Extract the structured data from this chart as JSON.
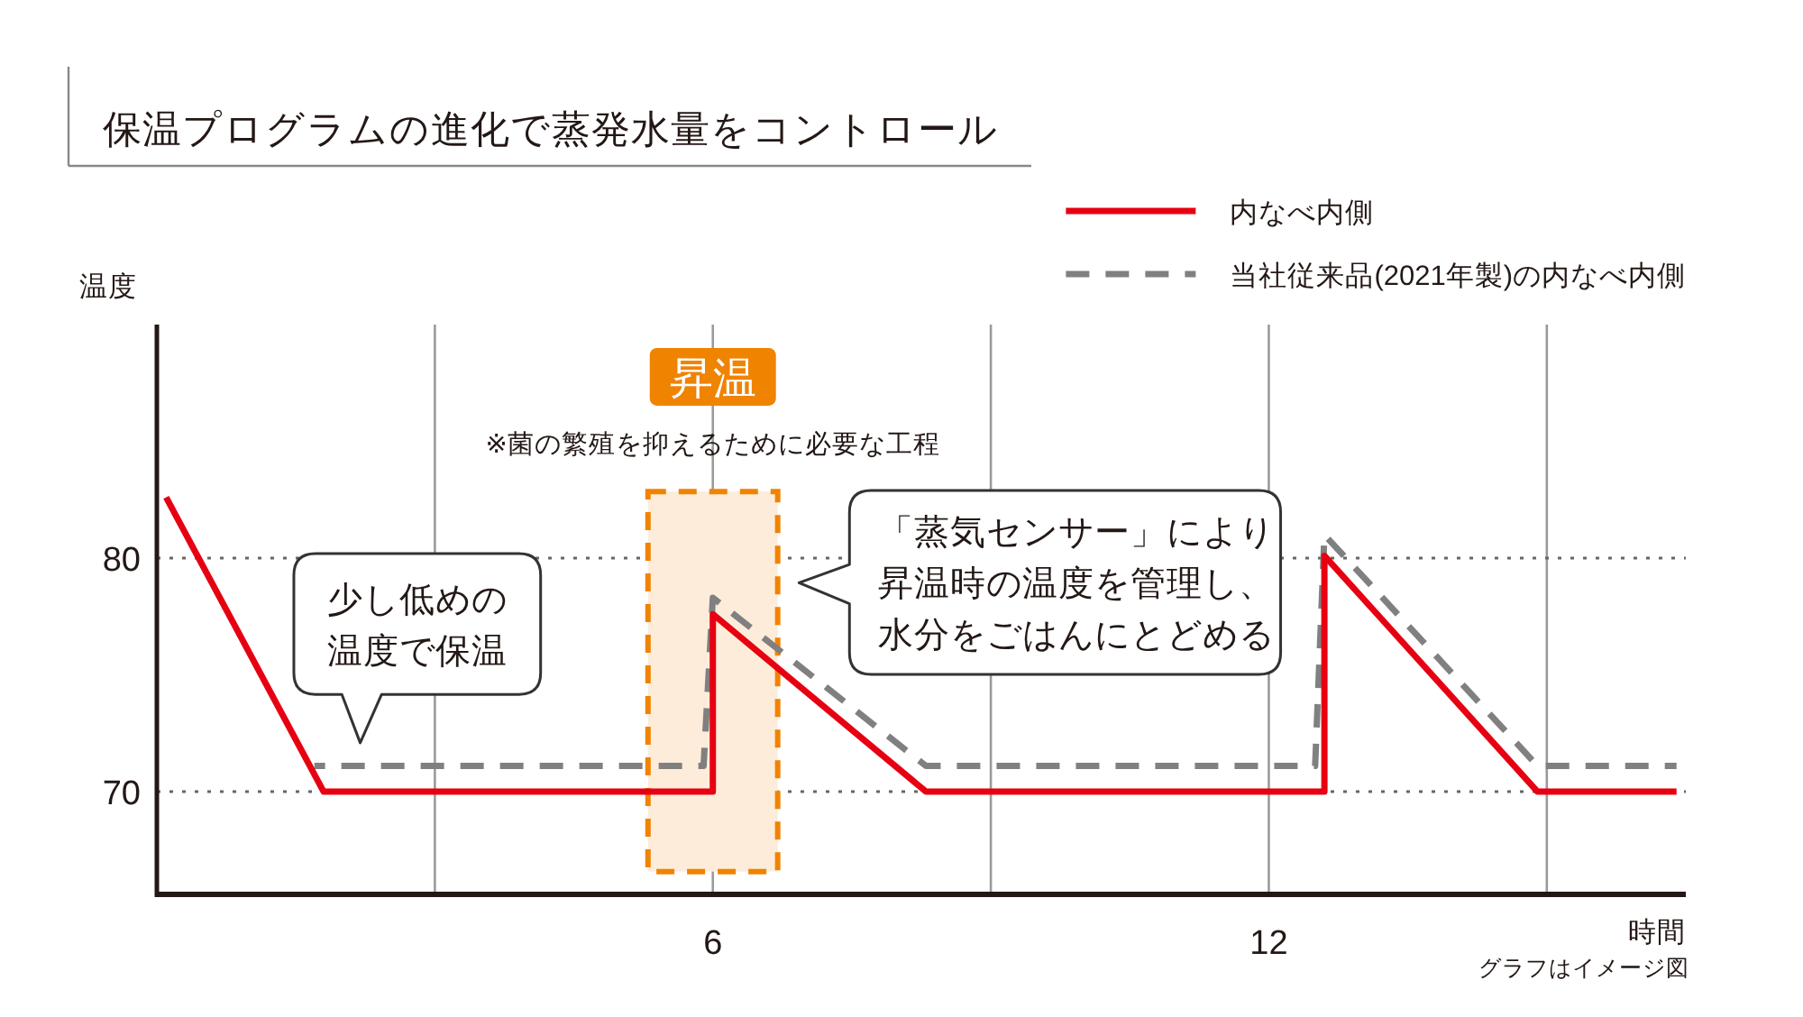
{
  "chart_data": {
    "type": "line",
    "title": "保温プログラムの進化で蒸発水量をコントロール",
    "xlabel": "時間",
    "ylabel": "温度",
    "xlim": [
      0,
      16.5
    ],
    "ylim": [
      65.6,
      90
    ],
    "xticks": [
      {
        "value": 3,
        "label": null
      },
      6,
      {
        "value": 9,
        "label": null
      },
      12,
      {
        "value": 15,
        "label": null
      }
    ],
    "yticks": [
      70,
      80
    ],
    "grid": true,
    "legend": "top right",
    "series": [
      {
        "name": "内なべ内側",
        "color": "#e60012",
        "line_style": "solid",
        "x": [
          0.1,
          1.8,
          6,
          6,
          8.3,
          12.6,
          12.6,
          14.9,
          16.4
        ],
        "values": [
          82.6,
          70,
          70,
          77.6,
          70,
          70,
          80.1,
          70,
          70
        ]
      },
      {
        "name": "当社従来品(2021年製)の内なべ内側",
        "color": "#808080",
        "line_style": "dashed",
        "x": [
          1.7,
          5.9,
          6,
          8.3,
          12.5,
          12.6,
          14.9,
          16.4
        ],
        "values": [
          71.1,
          71.1,
          78.3,
          71.1,
          71.1,
          81.0,
          71.1,
          71.1
        ]
      }
    ],
    "bands": [
      {
        "axis": "x",
        "from": 5.3,
        "to": 6.7,
        "label": "昇温",
        "color": "#f08300"
      }
    ],
    "annotations": [
      "※菌の繁殖を抑えるために必要な工程",
      "少し低めの温度で保温",
      "「蒸気センサー」により昇温時の温度を管理し、水分をごはんにとどめる",
      "グラフはイメージ図"
    ]
  }
}
